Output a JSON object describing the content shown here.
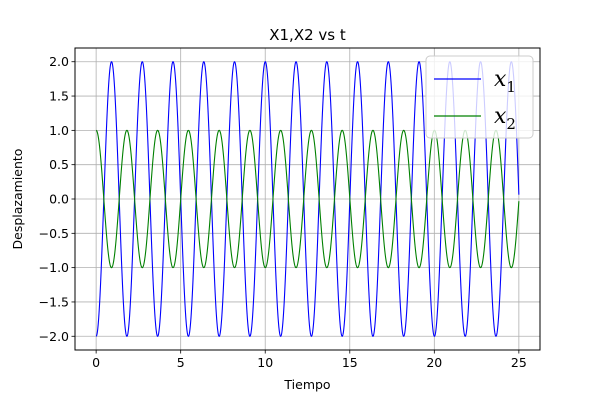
{
  "chart_data": {
    "type": "line",
    "title": "X1,X2 vs t",
    "xlabel": "Tiempo",
    "ylabel": "Desplazamiento",
    "xlim": [
      -1.25,
      26.25
    ],
    "ylim": [
      -2.2,
      2.2
    ],
    "xticks": [
      "0",
      "5",
      "10",
      "15",
      "20",
      "25"
    ],
    "yticks": [
      "2.0",
      "1.5",
      "1.0",
      "0.5",
      "0.0",
      "−0.5",
      "−1.0",
      "−1.5",
      "−2.0"
    ],
    "grid": true,
    "legend_position": "top-right",
    "x_range": [
      0,
      25
    ],
    "series": [
      {
        "name": "x1",
        "legend_base": "x",
        "legend_sub": "1",
        "color": "#0000ff",
        "formula": "-2*cos(w*t)",
        "amplitude": 2.0,
        "initial_value": -2.0,
        "angular_frequency": 3.4545
      },
      {
        "name": "x2",
        "legend_base": "x",
        "legend_sub": "2",
        "color": "#008000",
        "formula": "cos(w*t)",
        "amplitude": 1.0,
        "initial_value": 1.0,
        "angular_frequency": 3.4545
      }
    ]
  }
}
